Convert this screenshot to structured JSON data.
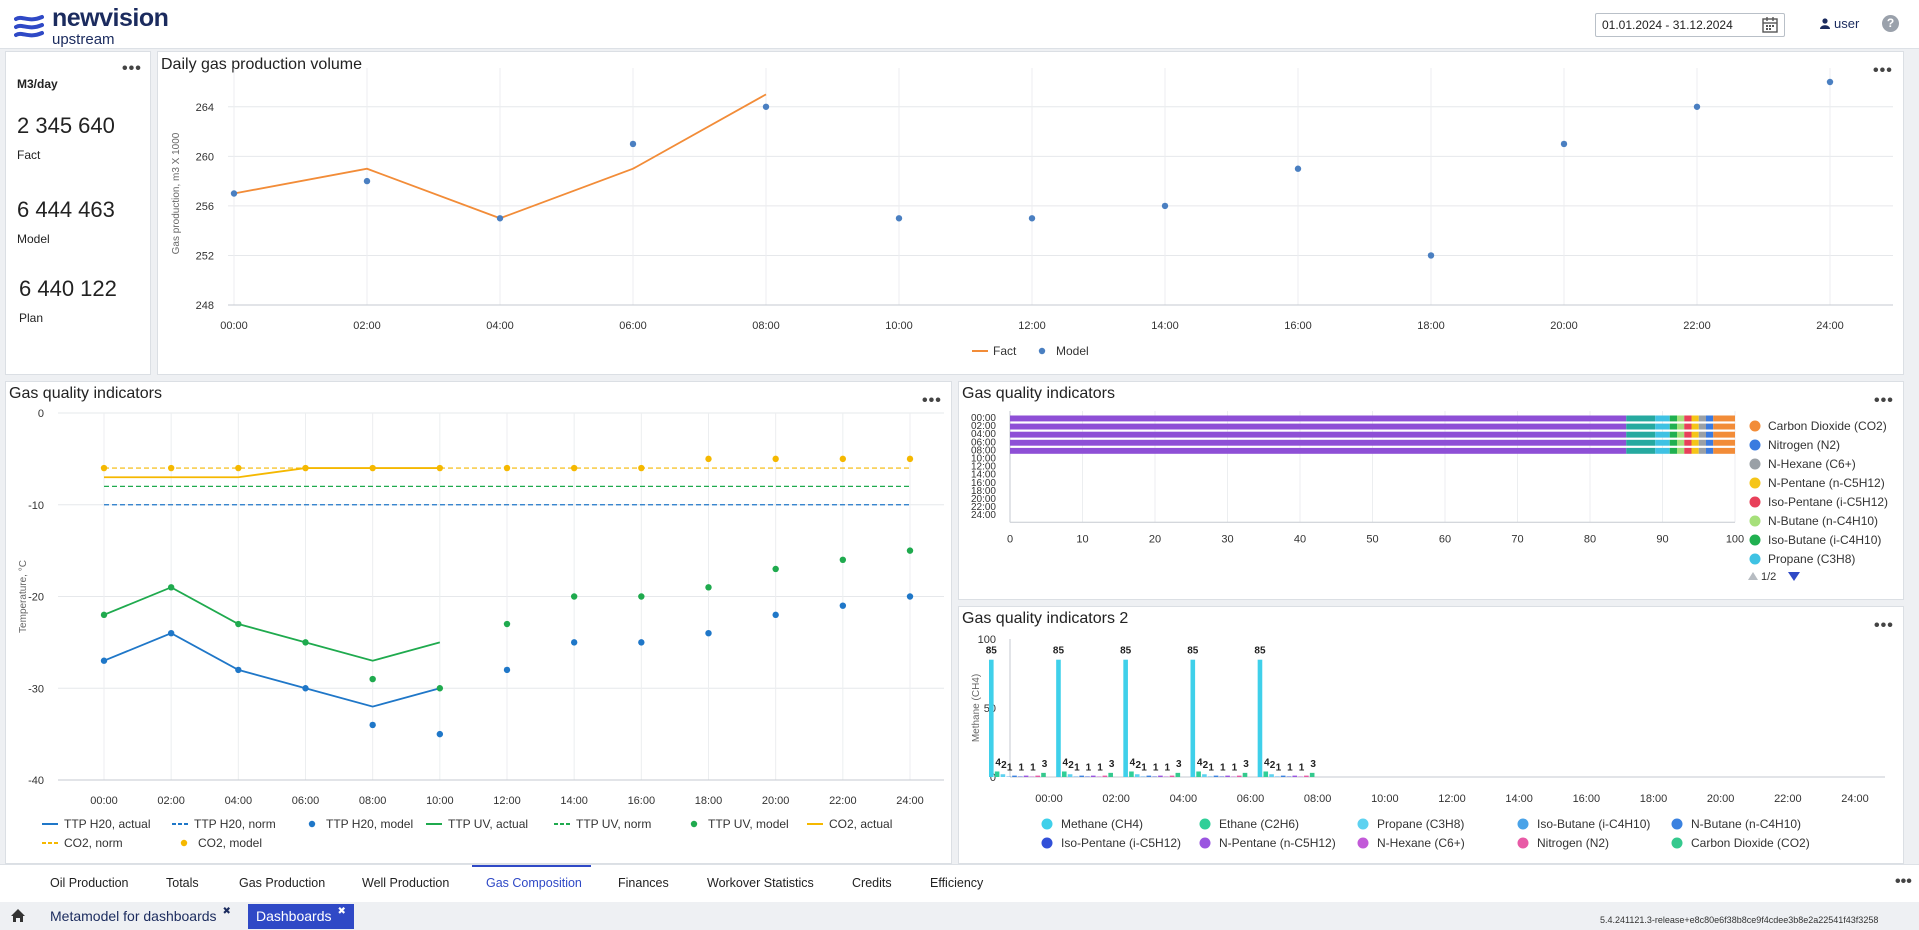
{
  "header": {
    "logo_name": "newvision",
    "logo_sub": "upstream",
    "date_range": "01.01.2024 - 31.12.2024",
    "user": "user",
    "help": "?"
  },
  "kpi": {
    "unit": "M3/day",
    "items": [
      {
        "value": "2 345 640",
        "label": "Fact"
      },
      {
        "value": "6 444 463",
        "label": "Model"
      },
      {
        "value": "6 440 122",
        "label": "Plan"
      }
    ],
    "menu": "•••"
  },
  "daily_panel": {
    "title": "Daily gas production volume",
    "menu": "•••"
  },
  "quality_left": {
    "title": "Gas quality indicators",
    "menu": "•••"
  },
  "quality_right": {
    "title": "Gas quality indicators",
    "menu": "•••",
    "pager": "1/2"
  },
  "quality_2": {
    "title": "Gas quality indicators 2",
    "menu": "•••"
  },
  "colors": {
    "accent": "#2f49c6",
    "fact": "#f28c38",
    "model": "#4a7fc1",
    "h2o": "#1f77c8",
    "uv": "#1faa4e",
    "co2": "#f5b800"
  },
  "chart_data": [
    {
      "type": "line",
      "ylabel": "Gas production, m3 X 1000",
      "ylim": [
        248,
        266
      ],
      "yticks": [
        248,
        252,
        256,
        260,
        264
      ],
      "x": [
        "00:00",
        "02:00",
        "04:00",
        "06:00",
        "08:00",
        "10:00",
        "12:00",
        "14:00",
        "16:00",
        "18:00",
        "20:00",
        "22:00",
        "24:00"
      ],
      "series": [
        {
          "name": "Fact",
          "style": "line",
          "color": "#f28c38",
          "values": [
            257,
            259,
            255,
            259,
            265,
            null,
            null,
            null,
            null,
            null,
            null,
            null,
            null
          ]
        },
        {
          "name": "Model",
          "style": "scatter",
          "color": "#4a7fc1",
          "values": [
            257,
            258,
            255,
            261,
            264,
            255,
            255,
            256,
            259,
            252,
            261,
            264,
            266
          ]
        }
      ],
      "legend": "bottom-center",
      "grid": true
    },
    {
      "type": "line",
      "ylabel": "Temperature, °C",
      "ylim": [
        -40,
        0
      ],
      "yticks": [
        0,
        -10,
        -20,
        -30,
        -40
      ],
      "x": [
        "00:00",
        "02:00",
        "04:00",
        "06:00",
        "08:00",
        "10:00",
        "12:00",
        "14:00",
        "16:00",
        "18:00",
        "20:00",
        "22:00",
        "24:00"
      ],
      "series": [
        {
          "name": "TTP H20, actual",
          "style": "line",
          "color": "#1f77c8",
          "values": [
            -27,
            -24,
            -28,
            -30,
            -32,
            -30,
            null,
            null,
            null,
            null,
            null,
            null,
            null
          ]
        },
        {
          "name": "TTP H20, norm",
          "style": "dash",
          "color": "#1f77c8",
          "values": [
            -10,
            -10,
            -10,
            -10,
            -10,
            -10,
            -10,
            -10,
            -10,
            -10,
            -10,
            -10,
            -10
          ]
        },
        {
          "name": "TTP H20, model",
          "style": "scatter",
          "color": "#1f77c8",
          "values": [
            -27,
            -24,
            -28,
            -30,
            -34,
            -35,
            -28,
            -25,
            -25,
            -24,
            -22,
            -21,
            -20
          ]
        },
        {
          "name": "TTP UV, actual",
          "style": "line",
          "color": "#1faa4e",
          "values": [
            -22,
            -19,
            -23,
            -25,
            -27,
            -25,
            null,
            null,
            null,
            null,
            null,
            null,
            null
          ]
        },
        {
          "name": "TTP UV, norm",
          "style": "dash",
          "color": "#1faa4e",
          "values": [
            -8,
            -8,
            -8,
            -8,
            -8,
            -8,
            -8,
            -8,
            -8,
            -8,
            -8,
            -8,
            -8
          ]
        },
        {
          "name": "TTP UV, model",
          "style": "scatter",
          "color": "#1faa4e",
          "values": [
            -22,
            -19,
            -23,
            -25,
            -29,
            -30,
            -23,
            -20,
            -20,
            -19,
            -17,
            -16,
            -15
          ]
        },
        {
          "name": "CO2, actual",
          "style": "line",
          "color": "#f5b800",
          "values": [
            -7,
            -7,
            -7,
            -6,
            -6,
            -6,
            null,
            null,
            null,
            null,
            null,
            null,
            null
          ]
        },
        {
          "name": "CO2, norm",
          "style": "dash",
          "color": "#f5b800",
          "values": [
            -6,
            -6,
            -6,
            -6,
            -6,
            -6,
            -6,
            -6,
            -6,
            -6,
            -6,
            -6,
            -6
          ]
        },
        {
          "name": "CO2, model",
          "style": "scatter",
          "color": "#f5b800",
          "values": [
            -6,
            -6,
            -6,
            -6,
            -6,
            -6,
            -6,
            -6,
            -6,
            -5,
            -5,
            -5,
            -5
          ]
        }
      ],
      "legend": "bottom",
      "grid": true
    },
    {
      "type": "bar",
      "orientation": "horizontal-stacked",
      "categories": [
        "00:00",
        "02:00",
        "04:00",
        "06:00",
        "08:00",
        "10:00",
        "12:00",
        "14:00",
        "16:00",
        "18:00",
        "20:00",
        "22:00",
        "24:00"
      ],
      "xlim": [
        0,
        100
      ],
      "xticks": [
        0,
        10,
        20,
        30,
        40,
        50,
        60,
        70,
        80,
        90,
        100
      ],
      "segments": [
        {
          "name": "Methane (CH4)",
          "color": "#8e4fd6",
          "values": [
            85,
            85,
            85,
            85,
            85,
            0,
            0,
            0,
            0,
            0,
            0,
            0,
            0
          ]
        },
        {
          "name": "Ethane (C2H6)",
          "color": "#26a9a0",
          "values": [
            4,
            4,
            4,
            4,
            4,
            0,
            0,
            0,
            0,
            0,
            0,
            0,
            0
          ]
        },
        {
          "name": "Propane (C3H8)",
          "color": "#3fc2e3",
          "values": [
            2,
            2,
            2,
            2,
            2,
            0,
            0,
            0,
            0,
            0,
            0,
            0,
            0
          ]
        },
        {
          "name": "Iso-Butane (i-C4H10)",
          "color": "#20b050",
          "values": [
            1,
            1,
            1,
            1,
            1,
            0,
            0,
            0,
            0,
            0,
            0,
            0,
            0
          ]
        },
        {
          "name": "N-Butane (n-C4H10)",
          "color": "#a6e07a",
          "values": [
            1,
            1,
            1,
            1,
            1,
            0,
            0,
            0,
            0,
            0,
            0,
            0,
            0
          ]
        },
        {
          "name": "Iso-Pentane (i-C5H12)",
          "color": "#e8405a",
          "values": [
            1,
            1,
            1,
            1,
            1,
            0,
            0,
            0,
            0,
            0,
            0,
            0,
            0
          ]
        },
        {
          "name": "N-Pentane (n-C5H12)",
          "color": "#f5c518",
          "values": [
            1,
            1,
            1,
            1,
            1,
            0,
            0,
            0,
            0,
            0,
            0,
            0,
            0
          ]
        },
        {
          "name": "N-Hexane (C6+)",
          "color": "#9aa0a6",
          "values": [
            1,
            1,
            1,
            1,
            1,
            0,
            0,
            0,
            0,
            0,
            0,
            0,
            0
          ]
        },
        {
          "name": "Nitrogen (N2)",
          "color": "#3a7be0",
          "values": [
            1,
            1,
            1,
            1,
            1,
            0,
            0,
            0,
            0,
            0,
            0,
            0,
            0
          ]
        },
        {
          "name": "Carbon Dioxide (CO2)",
          "color": "#f28c38",
          "values": [
            3,
            3,
            3,
            3,
            3,
            0,
            0,
            0,
            0,
            0,
            0,
            0,
            0
          ]
        }
      ],
      "legend_visible": [
        "Carbon Dioxide (CO2)",
        "Nitrogen (N2)",
        "N-Hexane (C6+)",
        "N-Pentane (n-C5H12)",
        "Iso-Pentane (i-C5H12)",
        "N-Butane (n-C4H10)",
        "Iso-Butane (i-C4H10)",
        "Propane (C3H8)"
      ],
      "legend_colors": [
        "#f28c38",
        "#3a7be0",
        "#9aa0a6",
        "#f5c518",
        "#e8405a",
        "#a6e07a",
        "#20b050",
        "#3fc2e3"
      ],
      "legend": "right"
    },
    {
      "type": "bar",
      "ylabel": "Methane (CH4)",
      "ylim": [
        0,
        100
      ],
      "yticks": [
        0,
        50,
        100
      ],
      "categories": [
        "00:00",
        "02:00",
        "04:00",
        "06:00",
        "08:00",
        "10:00",
        "12:00",
        "14:00",
        "16:00",
        "18:00",
        "20:00",
        "22:00",
        "24:00"
      ],
      "group_labels": [
        "85",
        "4",
        "2",
        "1",
        "1",
        "1",
        "3"
      ],
      "series": [
        {
          "name": "Methane (CH4)",
          "color": "#3fd0ea",
          "values": [
            85,
            85,
            85,
            85,
            85,
            0,
            0,
            0,
            0,
            0,
            0,
            0,
            0
          ]
        },
        {
          "name": "Ethane (C2H6)",
          "color": "#2fcf98",
          "values": [
            4,
            4,
            4,
            4,
            4,
            0,
            0,
            0,
            0,
            0,
            0,
            0,
            0
          ]
        },
        {
          "name": "Propane (C3H8)",
          "color": "#5ed2f0",
          "values": [
            2,
            2,
            2,
            2,
            2,
            0,
            0,
            0,
            0,
            0,
            0,
            0,
            0
          ]
        },
        {
          "name": "Iso-Butane (i-C4H10)",
          "color": "#4aa3e8",
          "values": [
            0.3,
            0.3,
            0.3,
            0.3,
            0.3,
            0,
            0,
            0,
            0,
            0,
            0,
            0,
            0
          ]
        },
        {
          "name": "N-Butane (n-C4H10)",
          "color": "#3b82e0",
          "values": [
            1,
            1,
            1,
            1,
            1,
            0,
            0,
            0,
            0,
            0,
            0,
            0,
            0
          ]
        },
        {
          "name": "Iso-Pentane (i-C5H12)",
          "color": "#3250d8",
          "values": [
            0.3,
            0.3,
            0.3,
            0.3,
            0.3,
            0,
            0,
            0,
            0,
            0,
            0,
            0,
            0
          ]
        },
        {
          "name": "N-Pentane (n-C5H12)",
          "color": "#9a55e0",
          "values": [
            1,
            1,
            1,
            1,
            1,
            0,
            0,
            0,
            0,
            0,
            0,
            0,
            0
          ]
        },
        {
          "name": "N-Hexane (C6+)",
          "color": "#c25ad8",
          "values": [
            0.3,
            0.3,
            0.3,
            0.3,
            0.3,
            0,
            0,
            0,
            0,
            0,
            0,
            0,
            0
          ]
        },
        {
          "name": "Nitrogen (N2)",
          "color": "#e85aa6",
          "values": [
            1,
            1,
            1,
            1,
            1,
            0,
            0,
            0,
            0,
            0,
            0,
            0,
            0
          ]
        },
        {
          "name": "Carbon Dioxide (CO2)",
          "color": "#35c98e",
          "values": [
            3,
            3,
            3,
            3,
            3,
            0,
            0,
            0,
            0,
            0,
            0,
            0,
            0
          ]
        }
      ],
      "legend": "bottom"
    }
  ],
  "tabs": [
    {
      "label": "Oil Production"
    },
    {
      "label": "Totals"
    },
    {
      "label": "Gas Production"
    },
    {
      "label": "Well Production"
    },
    {
      "label": "Gas Composition",
      "active": true
    },
    {
      "label": "Finances"
    },
    {
      "label": "Workover Statistics"
    },
    {
      "label": "Credits"
    },
    {
      "label": "Efficiency"
    }
  ],
  "tabs_more": "•••",
  "window_tabs": [
    {
      "label": "Metamodel for dashboards",
      "close": "✖"
    },
    {
      "label": "Dashboards",
      "close": "✖",
      "active": true
    }
  ],
  "version": "5.4.241121.3-release+e8c80e6f38b8ce9f4cdee3b8e2a22541f43f3258"
}
